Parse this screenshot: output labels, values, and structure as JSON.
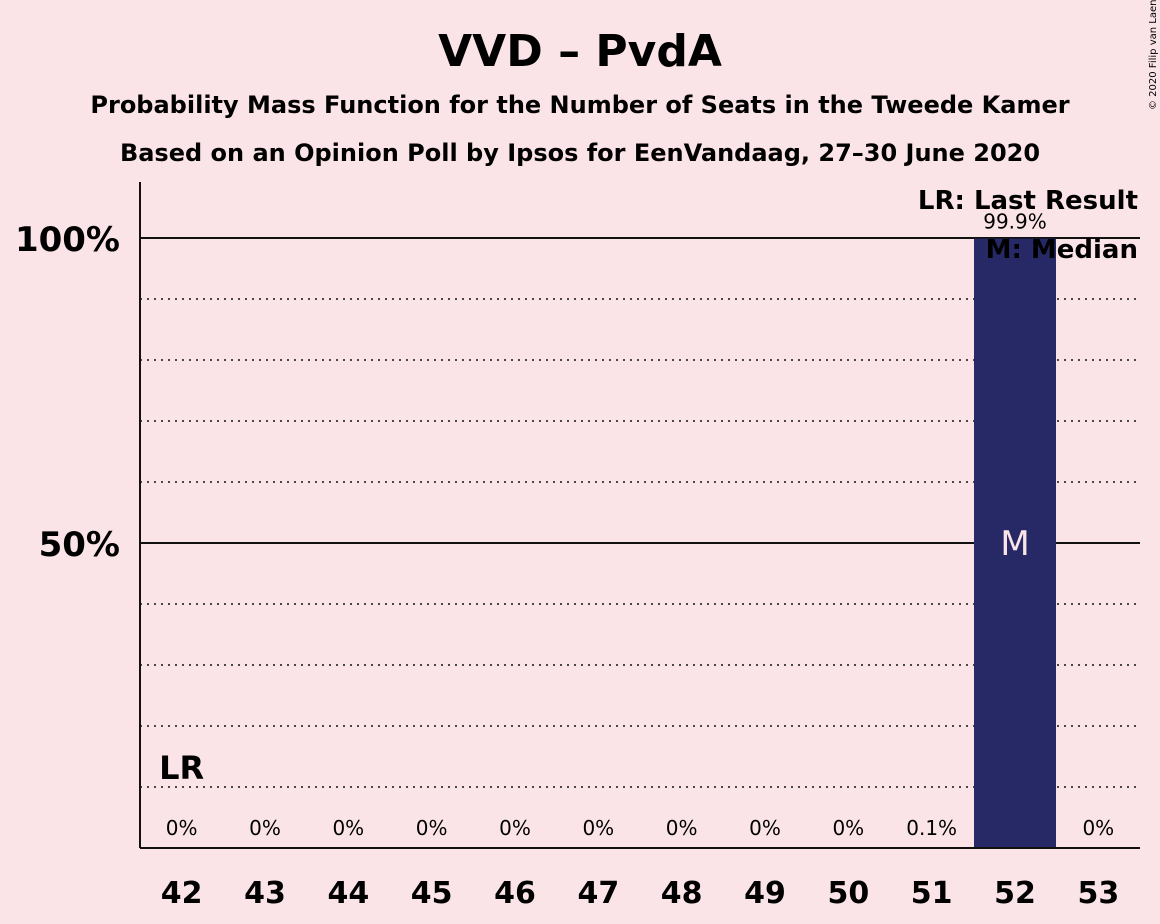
{
  "chart_data": {
    "type": "bar",
    "title": "VVD – PvdA",
    "subtitle": "Probability Mass Function for the Number of Seats in the Tweede Kamer",
    "subtitle2": "Based on an Opinion Poll by Ipsos for EenVandaag, 27–30 June 2020",
    "categories": [
      "42",
      "43",
      "44",
      "45",
      "46",
      "47",
      "48",
      "49",
      "50",
      "51",
      "52",
      "53"
    ],
    "values": [
      0,
      0,
      0,
      0,
      0,
      0,
      0,
      0,
      0,
      0.1,
      99.9,
      0
    ],
    "value_labels": [
      "0%",
      "0%",
      "0%",
      "0%",
      "0%",
      "0%",
      "0%",
      "0%",
      "0%",
      "0.1%",
      "99.9%",
      "0%"
    ],
    "ylim": [
      0,
      109
    ],
    "yticks": [
      50,
      100
    ],
    "ytick_labels": [
      "50%",
      "100%"
    ],
    "minor_grid": [
      10,
      20,
      30,
      40,
      60,
      70,
      80,
      90
    ],
    "last_result": "42",
    "last_result_marker": "LR",
    "median": "52",
    "median_marker": "M",
    "legend": {
      "position": "top-right",
      "lr": "LR: Last Result",
      "m": "M: Median"
    },
    "bar_color": "#262966",
    "copyright": "© 2020 Filip van Laenen"
  }
}
